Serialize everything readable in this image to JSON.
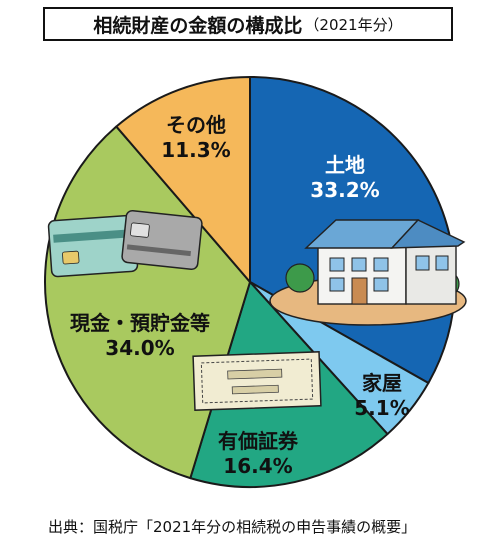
{
  "header": {
    "title": "相続財産の金額の構成比",
    "subtitle": "（2021年分）"
  },
  "chart_data": {
    "type": "pie",
    "unit": "%",
    "slices": [
      {
        "label": "土地",
        "value": 33.2,
        "value_text": "33.2%",
        "color": "#1566b3",
        "text_color": "#ffffff"
      },
      {
        "label": "家屋",
        "value": 5.1,
        "value_text": "5.1%",
        "color": "#7ec9ef",
        "text_color": "#111111"
      },
      {
        "label": "有価証券",
        "value": 16.4,
        "value_text": "16.4%",
        "color": "#22a783",
        "text_color": "#111111"
      },
      {
        "label": "現金・預貯金等",
        "value": 34.0,
        "value_text": "34.0%",
        "color": "#a9c95f",
        "text_color": "#111111"
      },
      {
        "label": "その他",
        "value": 11.3,
        "value_text": "11.3%",
        "color": "#f5b85a",
        "text_color": "#111111"
      }
    ],
    "start_angle": "12 o'clock",
    "direction": "clockwise"
  },
  "illustrations": [
    "house-illustration",
    "cards-illustration",
    "stock-certificate-illustration"
  ],
  "footer": {
    "source": "出典：国税庁「2021年分の相続税の申告事績の概要」"
  }
}
